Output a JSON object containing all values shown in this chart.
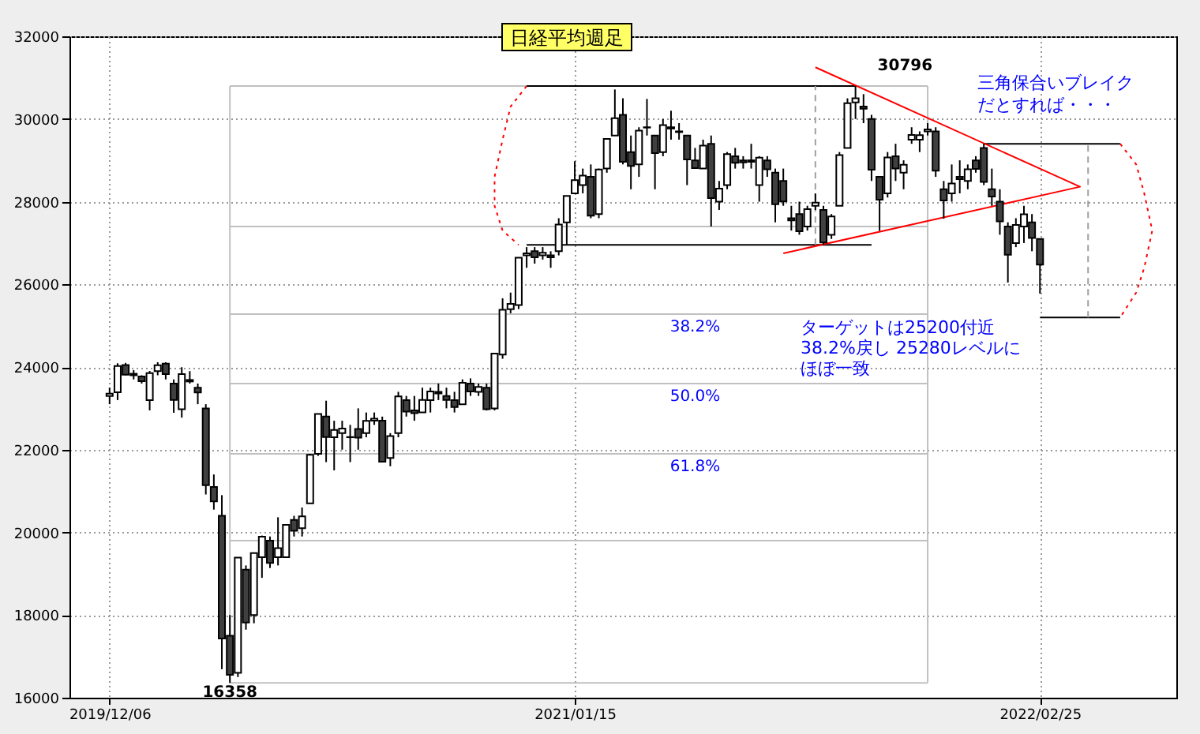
{
  "chart_data": {
    "type": "candlestick",
    "title": "日経平均週足",
    "x": [
      "2019-12-06",
      "2019-12-13",
      "2019-12-20",
      "2019-12-27",
      "2020-01-03",
      "2020-01-10",
      "2020-01-17",
      "2020-01-24",
      "2020-01-31",
      "2020-02-07",
      "2020-02-14",
      "2020-02-21",
      "2020-02-28",
      "2020-03-06",
      "2020-03-13",
      "2020-03-20",
      "2020-03-27",
      "2020-04-03",
      "2020-04-10",
      "2020-04-17",
      "2020-04-24",
      "2020-05-01",
      "2020-05-08",
      "2020-05-15",
      "2020-05-22",
      "2020-05-29",
      "2020-06-05",
      "2020-06-12",
      "2020-06-19",
      "2020-06-26",
      "2020-07-03",
      "2020-07-10",
      "2020-07-17",
      "2020-07-24",
      "2020-07-31",
      "2020-08-07",
      "2020-08-14",
      "2020-08-21",
      "2020-08-28",
      "2020-09-04",
      "2020-09-11",
      "2020-09-18",
      "2020-09-25",
      "2020-10-02",
      "2020-10-09",
      "2020-10-16",
      "2020-10-23",
      "2020-10-30",
      "2020-11-06",
      "2020-11-13",
      "2020-11-20",
      "2020-11-27",
      "2020-12-04",
      "2020-12-11",
      "2020-12-18",
      "2020-12-25",
      "2021-01-01",
      "2021-01-08",
      "2021-01-15",
      "2021-01-22",
      "2021-01-29",
      "2021-02-05",
      "2021-02-12",
      "2021-02-19",
      "2021-02-26",
      "2021-03-05",
      "2021-03-12",
      "2021-03-19",
      "2021-03-26",
      "2021-04-02",
      "2021-04-09",
      "2021-04-16",
      "2021-04-23",
      "2021-04-30",
      "2021-05-07",
      "2021-05-14",
      "2021-05-21",
      "2021-05-28",
      "2021-06-04",
      "2021-06-11",
      "2021-06-18",
      "2021-06-25",
      "2021-07-02",
      "2021-07-09",
      "2021-07-16",
      "2021-07-23",
      "2021-07-30",
      "2021-08-06",
      "2021-08-13",
      "2021-08-20",
      "2021-08-27",
      "2021-09-03",
      "2021-09-10",
      "2021-09-17",
      "2021-09-24",
      "2021-10-01",
      "2021-10-08",
      "2021-10-15",
      "2021-10-22",
      "2021-10-29",
      "2021-11-05",
      "2021-11-12",
      "2021-11-19",
      "2021-11-26",
      "2021-12-03",
      "2021-12-10",
      "2021-12-17",
      "2021-12-24",
      "2021-12-31",
      "2022-01-07",
      "2022-01-14",
      "2022-01-21",
      "2022-01-28",
      "2022-02-04",
      "2022-02-11",
      "2022-02-18",
      "2022-02-25"
    ],
    "ohlc": [
      [
        23300,
        23500,
        23100,
        23354
      ],
      [
        23390,
        24091,
        23200,
        24023
      ],
      [
        24050,
        24100,
        23800,
        23816
      ],
      [
        23800,
        23924,
        23700,
        23837
      ],
      [
        23770,
        23800,
        23600,
        23656
      ],
      [
        23200,
        23903,
        22950,
        23850
      ],
      [
        23900,
        24115,
        23800,
        24041
      ],
      [
        24083,
        24115,
        23700,
        23827
      ],
      [
        23600,
        23700,
        22892,
        23205
      ],
      [
        22977,
        23995,
        22775,
        23827
      ],
      [
        23650,
        23900,
        23600,
        23687
      ],
      [
        23500,
        23600,
        23100,
        23386
      ],
      [
        23000,
        23100,
        20916,
        21142
      ],
      [
        21100,
        21400,
        20550,
        20749
      ],
      [
        20400,
        20900,
        16690,
        17431
      ],
      [
        17500,
        18000,
        16358,
        16553
      ],
      [
        16600,
        19389,
        16500,
        19389
      ],
      [
        19100,
        19200,
        17646,
        17820
      ],
      [
        18000,
        19500,
        17800,
        19498
      ],
      [
        19400,
        19922,
        18900,
        19897
      ],
      [
        19800,
        19900,
        19137,
        19262
      ],
      [
        19400,
        20365,
        19200,
        19619
      ],
      [
        19400,
        20179,
        19400,
        20179
      ],
      [
        20300,
        20400,
        19900,
        20037
      ],
      [
        20100,
        20600,
        19900,
        20388
      ],
      [
        20700,
        21900,
        20700,
        21877
      ],
      [
        21900,
        22863,
        21850,
        22863
      ],
      [
        22800,
        23185,
        21700,
        22305
      ],
      [
        22300,
        22700,
        21500,
        22478
      ],
      [
        22400,
        22700,
        22000,
        22512
      ],
      [
        22300,
        22600,
        21700,
        22306
      ],
      [
        22500,
        23000,
        22000,
        22290
      ],
      [
        22400,
        22900,
        22300,
        22696
      ],
      [
        22700,
        22900,
        22600,
        22751
      ],
      [
        22700,
        22800,
        21700,
        21710
      ],
      [
        21800,
        22400,
        21600,
        22329
      ],
      [
        22400,
        23400,
        22300,
        23289
      ],
      [
        23200,
        23300,
        22800,
        22920
      ],
      [
        22950,
        23300,
        22700,
        22882
      ],
      [
        22900,
        23500,
        22900,
        23205
      ],
      [
        23200,
        23500,
        22900,
        23406
      ],
      [
        23400,
        23600,
        23200,
        23360
      ],
      [
        23300,
        23500,
        23000,
        23204
      ],
      [
        23200,
        23400,
        22900,
        23029
      ],
      [
        23100,
        23700,
        23100,
        23619
      ],
      [
        23600,
        23725,
        23300,
        23410
      ],
      [
        23400,
        23600,
        23300,
        23516
      ],
      [
        23500,
        23600,
        22948,
        22977
      ],
      [
        23000,
        24325,
        22950,
        24325
      ],
      [
        24300,
        25662,
        24200,
        25385
      ],
      [
        25400,
        25800,
        25300,
        25527
      ],
      [
        25500,
        26644,
        25400,
        26644
      ],
      [
        26700,
        26900,
        26400,
        26751
      ],
      [
        26800,
        26900,
        26500,
        26652
      ],
      [
        26700,
        26900,
        26600,
        26763
      ],
      [
        26700,
        26800,
        26400,
        26656
      ],
      [
        26800,
        27600,
        26700,
        27444
      ],
      [
        27500,
        28139,
        26950,
        28139
      ],
      [
        28200,
        28979,
        28200,
        28519
      ],
      [
        28400,
        28800,
        28200,
        28631
      ],
      [
        28600,
        28900,
        27600,
        27663
      ],
      [
        27700,
        28800,
        27600,
        28779
      ],
      [
        28800,
        29520,
        28700,
        29520
      ],
      [
        29600,
        30714,
        29600,
        30018
      ],
      [
        30100,
        30500,
        28900,
        28966
      ],
      [
        29200,
        29600,
        28300,
        28864
      ],
      [
        28900,
        29800,
        28600,
        29717
      ],
      [
        29800,
        30485,
        29600,
        29792
      ],
      [
        29600,
        29600,
        28300,
        29176
      ],
      [
        29200,
        30000,
        29100,
        29854
      ],
      [
        29800,
        30200,
        29500,
        29768
      ],
      [
        29700,
        29900,
        29500,
        29683
      ],
      [
        29600,
        29600,
        28400,
        29020
      ],
      [
        29000,
        29300,
        28800,
        28812
      ],
      [
        28800,
        29500,
        28800,
        29357
      ],
      [
        29400,
        29600,
        27400,
        28084
      ],
      [
        28000,
        28500,
        27800,
        28317
      ],
      [
        28400,
        29200,
        28300,
        29149
      ],
      [
        29100,
        29300,
        28800,
        28941
      ],
      [
        29000,
        29100,
        28800,
        28948
      ],
      [
        29000,
        29400,
        28800,
        28964
      ],
      [
        28400,
        29100,
        28000,
        29066
      ],
      [
        29000,
        29100,
        28600,
        28783
      ],
      [
        28700,
        28800,
        27500,
        27940
      ],
      [
        28500,
        28800,
        27900,
        28003
      ],
      [
        27600,
        27900,
        27300,
        27548
      ],
      [
        27700,
        28000,
        27200,
        27283
      ],
      [
        27400,
        27900,
        27300,
        27820
      ],
      [
        27900,
        28200,
        27800,
        27977
      ],
      [
        27800,
        27900,
        26954,
        27013
      ],
      [
        27200,
        27700,
        27100,
        27641
      ],
      [
        27900,
        29200,
        27900,
        29128
      ],
      [
        29300,
        30500,
        29300,
        30381
      ],
      [
        30400,
        30796,
        30000,
        30500
      ],
      [
        30300,
        30600,
        29900,
        30248
      ],
      [
        30000,
        30100,
        28500,
        28771
      ],
      [
        28600,
        28600,
        27293,
        28048
      ],
      [
        28200,
        29200,
        28100,
        29068
      ],
      [
        29100,
        29400,
        28500,
        28804
      ],
      [
        28700,
        29000,
        28300,
        28892
      ],
      [
        29500,
        29800,
        29400,
        29611
      ],
      [
        29500,
        29700,
        29200,
        29609
      ],
      [
        29700,
        29900,
        29600,
        29745
      ],
      [
        29700,
        29800,
        28600,
        28751
      ],
      [
        28300,
        28500,
        27588,
        28029
      ],
      [
        28200,
        28900,
        28000,
        28437
      ],
      [
        28600,
        29000,
        28200,
        28545
      ],
      [
        28500,
        28900,
        28300,
        28782
      ],
      [
        29000,
        29100,
        28700,
        28791
      ],
      [
        29300,
        29400,
        28400,
        28478
      ],
      [
        28300,
        28800,
        27900,
        28124
      ],
      [
        28000,
        28300,
        27200,
        27522
      ],
      [
        27400,
        27500,
        26044,
        26717
      ],
      [
        27000,
        27600,
        26900,
        27439
      ],
      [
        27400,
        27900,
        27000,
        27696
      ],
      [
        27500,
        27700,
        26800,
        27122
      ],
      [
        27100,
        27100,
        25775,
        26476
      ]
    ],
    "series": [
      {
        "type": "line",
        "color": "#c0c0c0",
        "x": [
          "2020-03-20",
          "2021-11-19"
        ],
        "values": [
          30796,
          30796
        ]
      },
      {
        "type": "line",
        "color": "#c0c0c0",
        "x": [
          "2020-03-20",
          "2021-11-19"
        ],
        "values": [
          16358,
          16358
        ]
      },
      {
        "type": "line",
        "color": "#c0c0c0",
        "x": [
          "2020-03-20",
          "2020-03-20"
        ],
        "values": [
          16358,
          30796
        ]
      },
      {
        "type": "line",
        "color": "#c0c0c0",
        "x": [
          "2021-11-19",
          "2021-11-19"
        ],
        "values": [
          16358,
          30796
        ]
      },
      {
        "type": "line",
        "color": "#c0c0c0",
        "x": [
          "2020-03-20",
          "2021-11-19"
        ],
        "values": [
          27400,
          27400
        ]
      },
      {
        "type": "line",
        "color": "#c0c0c0",
        "x": [
          "2020-03-20",
          "2021-11-19"
        ],
        "values": [
          25280,
          25280
        ]
      },
      {
        "type": "line",
        "color": "#c0c0c0",
        "x": [
          "2020-03-20",
          "2021-11-19"
        ],
        "values": [
          23600,
          23600
        ]
      },
      {
        "type": "line",
        "color": "#c0c0c0",
        "x": [
          "2020-03-20",
          "2021-11-19"
        ],
        "values": [
          21900,
          21900
        ]
      },
      {
        "type": "line",
        "color": "#c0c0c0",
        "x": [
          "2020-03-20",
          "2021-11-19"
        ],
        "values": [
          19800,
          19800
        ]
      },
      {
        "type": "line",
        "color": "#000000",
        "x": [
          "2020-12-04",
          "2021-09-17"
        ],
        "values": [
          30796,
          30796
        ]
      },
      {
        "type": "line",
        "color": "#000000",
        "x": [
          "2020-12-04",
          "2021-10-01"
        ],
        "values": [
          26954,
          26954
        ]
      },
      {
        "type": "line",
        "color": "#000000",
        "x": [
          "2022-01-07",
          "2022-05-06"
        ],
        "values": [
          29400,
          29400
        ]
      },
      {
        "type": "line",
        "color": "#000000",
        "x": [
          "2022-02-25",
          "2022-05-06"
        ],
        "values": [
          25200,
          25200
        ]
      },
      {
        "type": "line",
        "color": "#ff0000",
        "x": [
          "2021-08-13",
          "2022-04-01",
          "2021-07-16"
        ],
        "values": [
          31250,
          28360,
          26750
        ]
      },
      {
        "type": "line",
        "color": "#a0a0a0",
        "line_style": "dashed",
        "x": [
          "2021-08-13",
          "2021-08-13"
        ],
        "values": [
          26954,
          30796
        ]
      },
      {
        "type": "line",
        "color": "#a0a0a0",
        "line_style": "dashed",
        "x": [
          "2022-04-08",
          "2022-04-08"
        ],
        "values": [
          25200,
          29400
        ]
      },
      {
        "type": "line",
        "color": "#ff0000",
        "line_style": "dotted",
        "x": [
          "2020-12-04",
          "2020-11-20",
          "2020-11-13",
          "2020-11-06",
          "2020-11-06",
          "2020-11-13",
          "2020-11-27"
        ],
        "values": [
          30796,
          30300,
          29500,
          28600,
          27900,
          27300,
          26954
        ]
      },
      {
        "type": "line",
        "color": "#ff0000",
        "line_style": "dotted",
        "x": [
          "2022-05-06",
          "2022-05-20",
          "2022-05-27",
          "2022-06-03",
          "2022-05-27",
          "2022-05-20",
          "2022-05-06"
        ],
        "values": [
          29400,
          28900,
          28200,
          27300,
          26400,
          25800,
          25200
        ]
      }
    ],
    "annotations": [
      {
        "text": "30796",
        "x": "2021-09-17",
        "y": 30796
      },
      {
        "text": "16358",
        "x": "2020-03-20",
        "y": 16358
      },
      {
        "text": "38.2%",
        "x": "2021-04-30",
        "y": 25280
      },
      {
        "text": "50.0%",
        "x": "2021-04-30",
        "y": 23600
      },
      {
        "text": "61.8%",
        "x": "2021-04-30",
        "y": 21900
      },
      "三角保合いブレイク",
      "だとすれば・・・",
      "ターゲットは25200付近",
      "38.2%戻し 25280レベルに",
      "ほぼ一致"
    ],
    "xlim": [
      "2019-11-01",
      "2022-06-24"
    ],
    "xticks": [
      {
        "value": "2019-12-06",
        "label": "2019/12/06"
      },
      {
        "value": "2021-01-15",
        "label": "2021/01/15"
      },
      {
        "value": "2022-02-25",
        "label": "2022/02/25"
      }
    ],
    "ylim": [
      16000,
      32000
    ],
    "yticks": [
      16000,
      18000,
      20000,
      22000,
      24000,
      26000,
      28000,
      30000,
      32000
    ],
    "grid": true
  }
}
